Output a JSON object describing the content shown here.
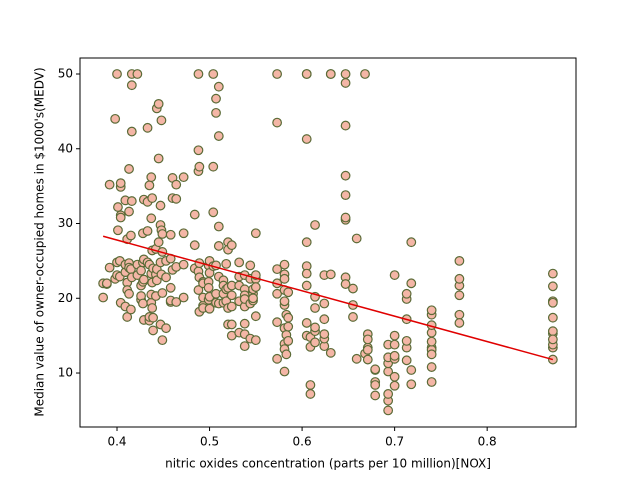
{
  "chart_data": {
    "type": "scatter",
    "xlabel": "nitric oxides concentration (parts per 10 million)[NOX]",
    "ylabel": "Median value of owner-occupied homes in $1000's(MEDV)",
    "xlim": [
      0.36,
      0.896
    ],
    "ylim": [
      2.78,
      52.14
    ],
    "xticks": [
      0.4,
      0.5,
      0.6,
      0.7,
      0.8
    ],
    "yticks": [
      10,
      20,
      30,
      40,
      50
    ],
    "color": "#f4b6a6",
    "edgecolor": "#5b6b37",
    "x": [
      0.385,
      0.385,
      0.389,
      0.389,
      0.392,
      0.392,
      0.398,
      0.398,
      0.4,
      0.4,
      0.4,
      0.401,
      0.401,
      0.403,
      0.403,
      0.404,
      0.404,
      0.404,
      0.404,
      0.404,
      0.409,
      0.409,
      0.409,
      0.409,
      0.411,
      0.411,
      0.411,
      0.411,
      0.413,
      0.413,
      0.413,
      0.413,
      0.413,
      0.415,
      0.415,
      0.415,
      0.416,
      0.416,
      0.416,
      0.416,
      0.416,
      0.422,
      0.422,
      0.422,
      0.426,
      0.426,
      0.426,
      0.426,
      0.428,
      0.428,
      0.428,
      0.428,
      0.429,
      0.429,
      0.429,
      0.429,
      0.433,
      0.433,
      0.433,
      0.433,
      0.435,
      0.435,
      0.435,
      0.435,
      0.437,
      0.437,
      0.437,
      0.437,
      0.437,
      0.438,
      0.438,
      0.438,
      0.438,
      0.439,
      0.439,
      0.439,
      0.442,
      0.442,
      0.442,
      0.443,
      0.443,
      0.443,
      0.445,
      0.445,
      0.445,
      0.447,
      0.447,
      0.447,
      0.447,
      0.448,
      0.448,
      0.448,
      0.449,
      0.449,
      0.449,
      0.449,
      0.453,
      0.453,
      0.453,
      0.458,
      0.458,
      0.458,
      0.458,
      0.458,
      0.46,
      0.46,
      0.46,
      0.464,
      0.464,
      0.464,
      0.464,
      0.472,
      0.472,
      0.472,
      0.472,
      0.484,
      0.484,
      0.484,
      0.488,
      0.488,
      0.488,
      0.488,
      0.488,
      0.489,
      0.489,
      0.489,
      0.489,
      0.493,
      0.493,
      0.493,
      0.493,
      0.493,
      0.499,
      0.499,
      0.499,
      0.499,
      0.5,
      0.5,
      0.5,
      0.5,
      0.504,
      0.504,
      0.504,
      0.504,
      0.507,
      0.507,
      0.507,
      0.507,
      0.507,
      0.51,
      0.51,
      0.51,
      0.51,
      0.51,
      0.51,
      0.515,
      0.515,
      0.515,
      0.515,
      0.518,
      0.518,
      0.518,
      0.52,
      0.52,
      0.52,
      0.52,
      0.52,
      0.524,
      0.524,
      0.524,
      0.524,
      0.524,
      0.524,
      0.532,
      0.532,
      0.532,
      0.532,
      0.532,
      0.538,
      0.538,
      0.538,
      0.538,
      0.538,
      0.538,
      0.538,
      0.538,
      0.544,
      0.544,
      0.544,
      0.544,
      0.547,
      0.547,
      0.547,
      0.547,
      0.55,
      0.55,
      0.55,
      0.55,
      0.55,
      0.55,
      0.573,
      0.573,
      0.573,
      0.573,
      0.573,
      0.573,
      0.573,
      0.581,
      0.581,
      0.581,
      0.581,
      0.581,
      0.581,
      0.581,
      0.581,
      0.581,
      0.581,
      0.583,
      0.583,
      0.583,
      0.585,
      0.585,
      0.585,
      0.585,
      0.605,
      0.605,
      0.605,
      0.605,
      0.605,
      0.605,
      0.605,
      0.605,
      0.605,
      0.609,
      0.609,
      0.609,
      0.609,
      0.614,
      0.614,
      0.614,
      0.614,
      0.614,
      0.614,
      0.624,
      0.624,
      0.624,
      0.624,
      0.624,
      0.624,
      0.631,
      0.631,
      0.631,
      0.631,
      0.647,
      0.647,
      0.647,
      0.647,
      0.647,
      0.647,
      0.647,
      0.647,
      0.647,
      0.655,
      0.655,
      0.655,
      0.659,
      0.659,
      0.668,
      0.668,
      0.671,
      0.671,
      0.671,
      0.671,
      0.671,
      0.679,
      0.679,
      0.679,
      0.679,
      0.679,
      0.693,
      0.693,
      0.693,
      0.693,
      0.693,
      0.693,
      0.693,
      0.7,
      0.7,
      0.7,
      0.7,
      0.7,
      0.7,
      0.7,
      0.713,
      0.713,
      0.713,
      0.713,
      0.713,
      0.713,
      0.718,
      0.718,
      0.718,
      0.718,
      0.74,
      0.74,
      0.74,
      0.74,
      0.74,
      0.74,
      0.74,
      0.74,
      0.74,
      0.74,
      0.77,
      0.77,
      0.77,
      0.77,
      0.77,
      0.77,
      0.871,
      0.871,
      0.871,
      0.871,
      0.871,
      0.871,
      0.871,
      0.871,
      0.871,
      0.871,
      0.871
    ],
    "values": [
      22,
      20.1,
      21.9,
      22,
      24.1,
      35.2,
      44,
      22.6,
      50,
      24.8,
      23.1,
      32.2,
      29.1,
      22.9,
      25,
      34.9,
      35.4,
      31.1,
      19.4,
      30.8,
      33.1,
      23.5,
      24.5,
      18.9,
      17.5,
      27.9,
      22.1,
      21.1,
      24.7,
      37.3,
      31.6,
      20.6,
      24.1,
      28.4,
      23.9,
      18.5,
      42.3,
      48.5,
      50,
      22.8,
      33,
      50,
      23.1,
      24.5,
      19.8,
      20.3,
      23.7,
      21.7,
      28.7,
      24.8,
      22.2,
      19.3,
      22.5,
      17.1,
      25.2,
      33.2,
      24.8,
      42.8,
      32.9,
      29,
      17,
      17.5,
      24.5,
      35.1,
      19.4,
      36.2,
      30.7,
      20.5,
      23.3,
      22.1,
      18.7,
      26.4,
      33.4,
      24,
      17.4,
      15.7,
      23.2,
      20.3,
      26.6,
      45.4,
      23.9,
      22.4,
      46,
      38.7,
      27.5,
      16.5,
      32.4,
      24.8,
      29.8,
      29.1,
      43.8,
      23.2,
      26.2,
      20.7,
      14.4,
      28.6,
      22.8,
      25,
      16,
      25.3,
      19.5,
      28.5,
      19.7,
      21.4,
      36.1,
      33.4,
      23.8,
      24.2,
      35.2,
      19.5,
      33.3,
      36.2,
      28.7,
      20.1,
      24.5,
      24,
      31.2,
      27.1,
      39.8,
      50,
      37,
      23.6,
      21.1,
      37.6,
      24.7,
      22.8,
      18.2,
      19,
      22.2,
      20.1,
      22,
      18.7,
      24.4,
      19.8,
      22.2,
      21.4,
      25,
      23.4,
      18.6,
      20.2,
      50,
      37.6,
      31.5,
      24.3,
      44.8,
      46.7,
      24.4,
      20.6,
      19.4,
      48.3,
      41.7,
      22.9,
      27,
      19.3,
      29.6,
      22.4,
      19.4,
      21.7,
      20.6,
      21.2,
      19.6,
      24.6,
      27.5,
      26.5,
      16.5,
      21.4,
      18.7,
      27.1,
      16.5,
      18.9,
      15,
      21.7,
      20.4,
      21.7,
      22.9,
      19.6,
      15.4,
      24.8,
      23.1,
      18.9,
      21.2,
      16.6,
      13.6,
      20.4,
      15.2,
      19.9,
      22.6,
      24.4,
      14.6,
      19.3,
      20.6,
      21.2,
      19.7,
      20,
      28.7,
      22.6,
      23.1,
      21.5,
      14.4,
      17.6,
      23.9,
      20.6,
      22,
      16.8,
      11.9,
      43.5,
      50,
      21.1,
      23.2,
      16,
      19.1,
      13.9,
      19.6,
      22.6,
      24.5,
      10.2,
      13.2,
      17.8,
      12.5,
      15.1,
      16.2,
      20.8,
      14.3,
      17.4,
      27.5,
      50,
      16.7,
      24.3,
      23.3,
      15,
      50,
      41.3,
      21.7,
      13.5,
      8.4,
      7.2,
      14.8,
      15.6,
      20.2,
      18.7,
      29.8,
      16.1,
      14.1,
      19.3,
      23.1,
      13.6,
      17.2,
      14.6,
      15.2,
      50,
      50,
      23.2,
      12.7,
      43.1,
      30.5,
      36.4,
      22.8,
      50,
      48.8,
      33.8,
      21.9,
      30.8,
      19.1,
      21.3,
      17.5,
      11.9,
      28,
      50,
      12.6,
      13.4,
      15.2,
      13.1,
      14.5,
      11.8,
      10.4,
      8.8,
      8.4,
      7,
      10.5,
      10.2,
      5,
      6.3,
      7.2,
      11.3,
      13.8,
      12.1,
      13.8,
      8.3,
      11.9,
      9.5,
      23.1,
      15,
      12.3,
      13.4,
      19.9,
      20.6,
      17.2,
      14.3,
      11.7,
      8.5,
      27.5,
      22,
      10.4,
      10.8,
      13.4,
      17.8,
      15.4,
      13.1,
      8.8,
      14.2,
      16.4,
      18.4,
      12.5,
      25,
      20.4,
      21.7,
      17.8,
      16.7,
      22.6,
      13.4,
      15.3,
      17.4,
      19.6,
      23.3,
      21.6,
      11.8,
      15.6,
      13.8,
      19.4,
      14.5
    ],
    "fit_line": {
      "x": [
        0.385,
        0.871
      ],
      "values": [
        28.3,
        11.8
      ],
      "color": "#e00000"
    }
  }
}
